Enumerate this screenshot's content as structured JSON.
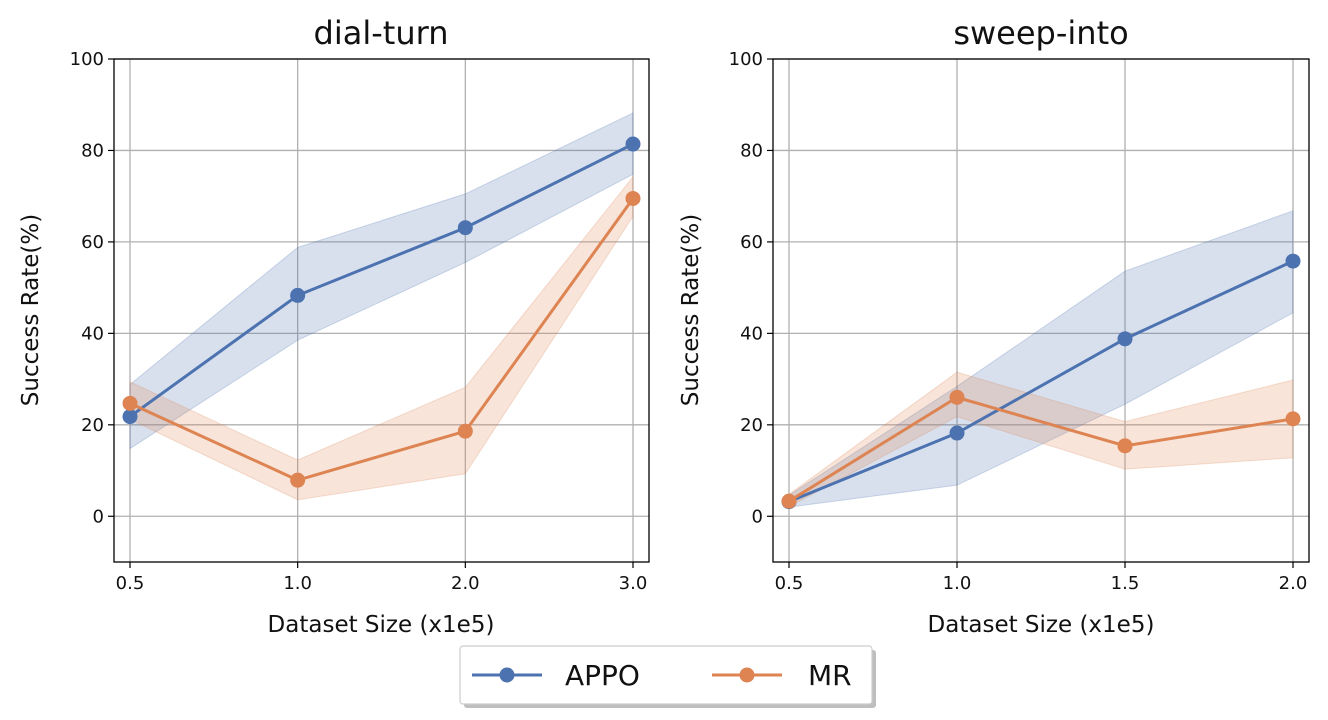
{
  "chart_data": [
    {
      "type": "line",
      "title": "dial-turn",
      "xlabel": "Dataset Size (x1e5)",
      "ylabel": "Success Rate(%)",
      "categories": [
        "0.5",
        "1.0",
        "2.0",
        "3.0"
      ],
      "ylim": [
        -10,
        100
      ],
      "yticks": [
        0,
        20,
        40,
        60,
        80,
        100
      ],
      "grid": true,
      "series": [
        {
          "name": "APPO",
          "color": "#4c72b0",
          "values": [
            21.8,
            48.3,
            63.1,
            81.4
          ],
          "lower": [
            14.8,
            38.5,
            55.5,
            74.8
          ],
          "upper": [
            28.8,
            58.8,
            70.5,
            88.2
          ]
        },
        {
          "name": "MR",
          "color": "#dd8452",
          "values": [
            24.7,
            7.9,
            18.6,
            69.5
          ],
          "lower": [
            21.2,
            3.6,
            9.3,
            65.6
          ],
          "upper": [
            29.4,
            12.3,
            28.2,
            74.2
          ]
        }
      ]
    },
    {
      "type": "line",
      "title": "sweep-into",
      "xlabel": "Dataset Size (x1e5)",
      "ylabel": "Success Rate(%)",
      "categories": [
        "0.5",
        "1.0",
        "1.5",
        "2.0"
      ],
      "ylim": [
        -10,
        100
      ],
      "yticks": [
        0,
        20,
        40,
        60,
        80,
        100
      ],
      "grid": true,
      "series": [
        {
          "name": "APPO",
          "color": "#4c72b0",
          "values": [
            3.2,
            18.2,
            38.8,
            55.8
          ],
          "lower": [
            2.0,
            6.8,
            24.5,
            44.5
          ],
          "upper": [
            4.6,
            28.4,
            53.6,
            66.8
          ]
        },
        {
          "name": "MR",
          "color": "#dd8452",
          "values": [
            3.3,
            26.0,
            15.4,
            21.3
          ],
          "lower": [
            2.1,
            21.8,
            10.3,
            12.8
          ],
          "upper": [
            4.8,
            31.5,
            20.7,
            29.8
          ]
        }
      ]
    }
  ],
  "legend": {
    "items": [
      {
        "label": "APPO",
        "color": "#4c72b0"
      },
      {
        "label": "MR",
        "color": "#dd8452"
      }
    ]
  }
}
